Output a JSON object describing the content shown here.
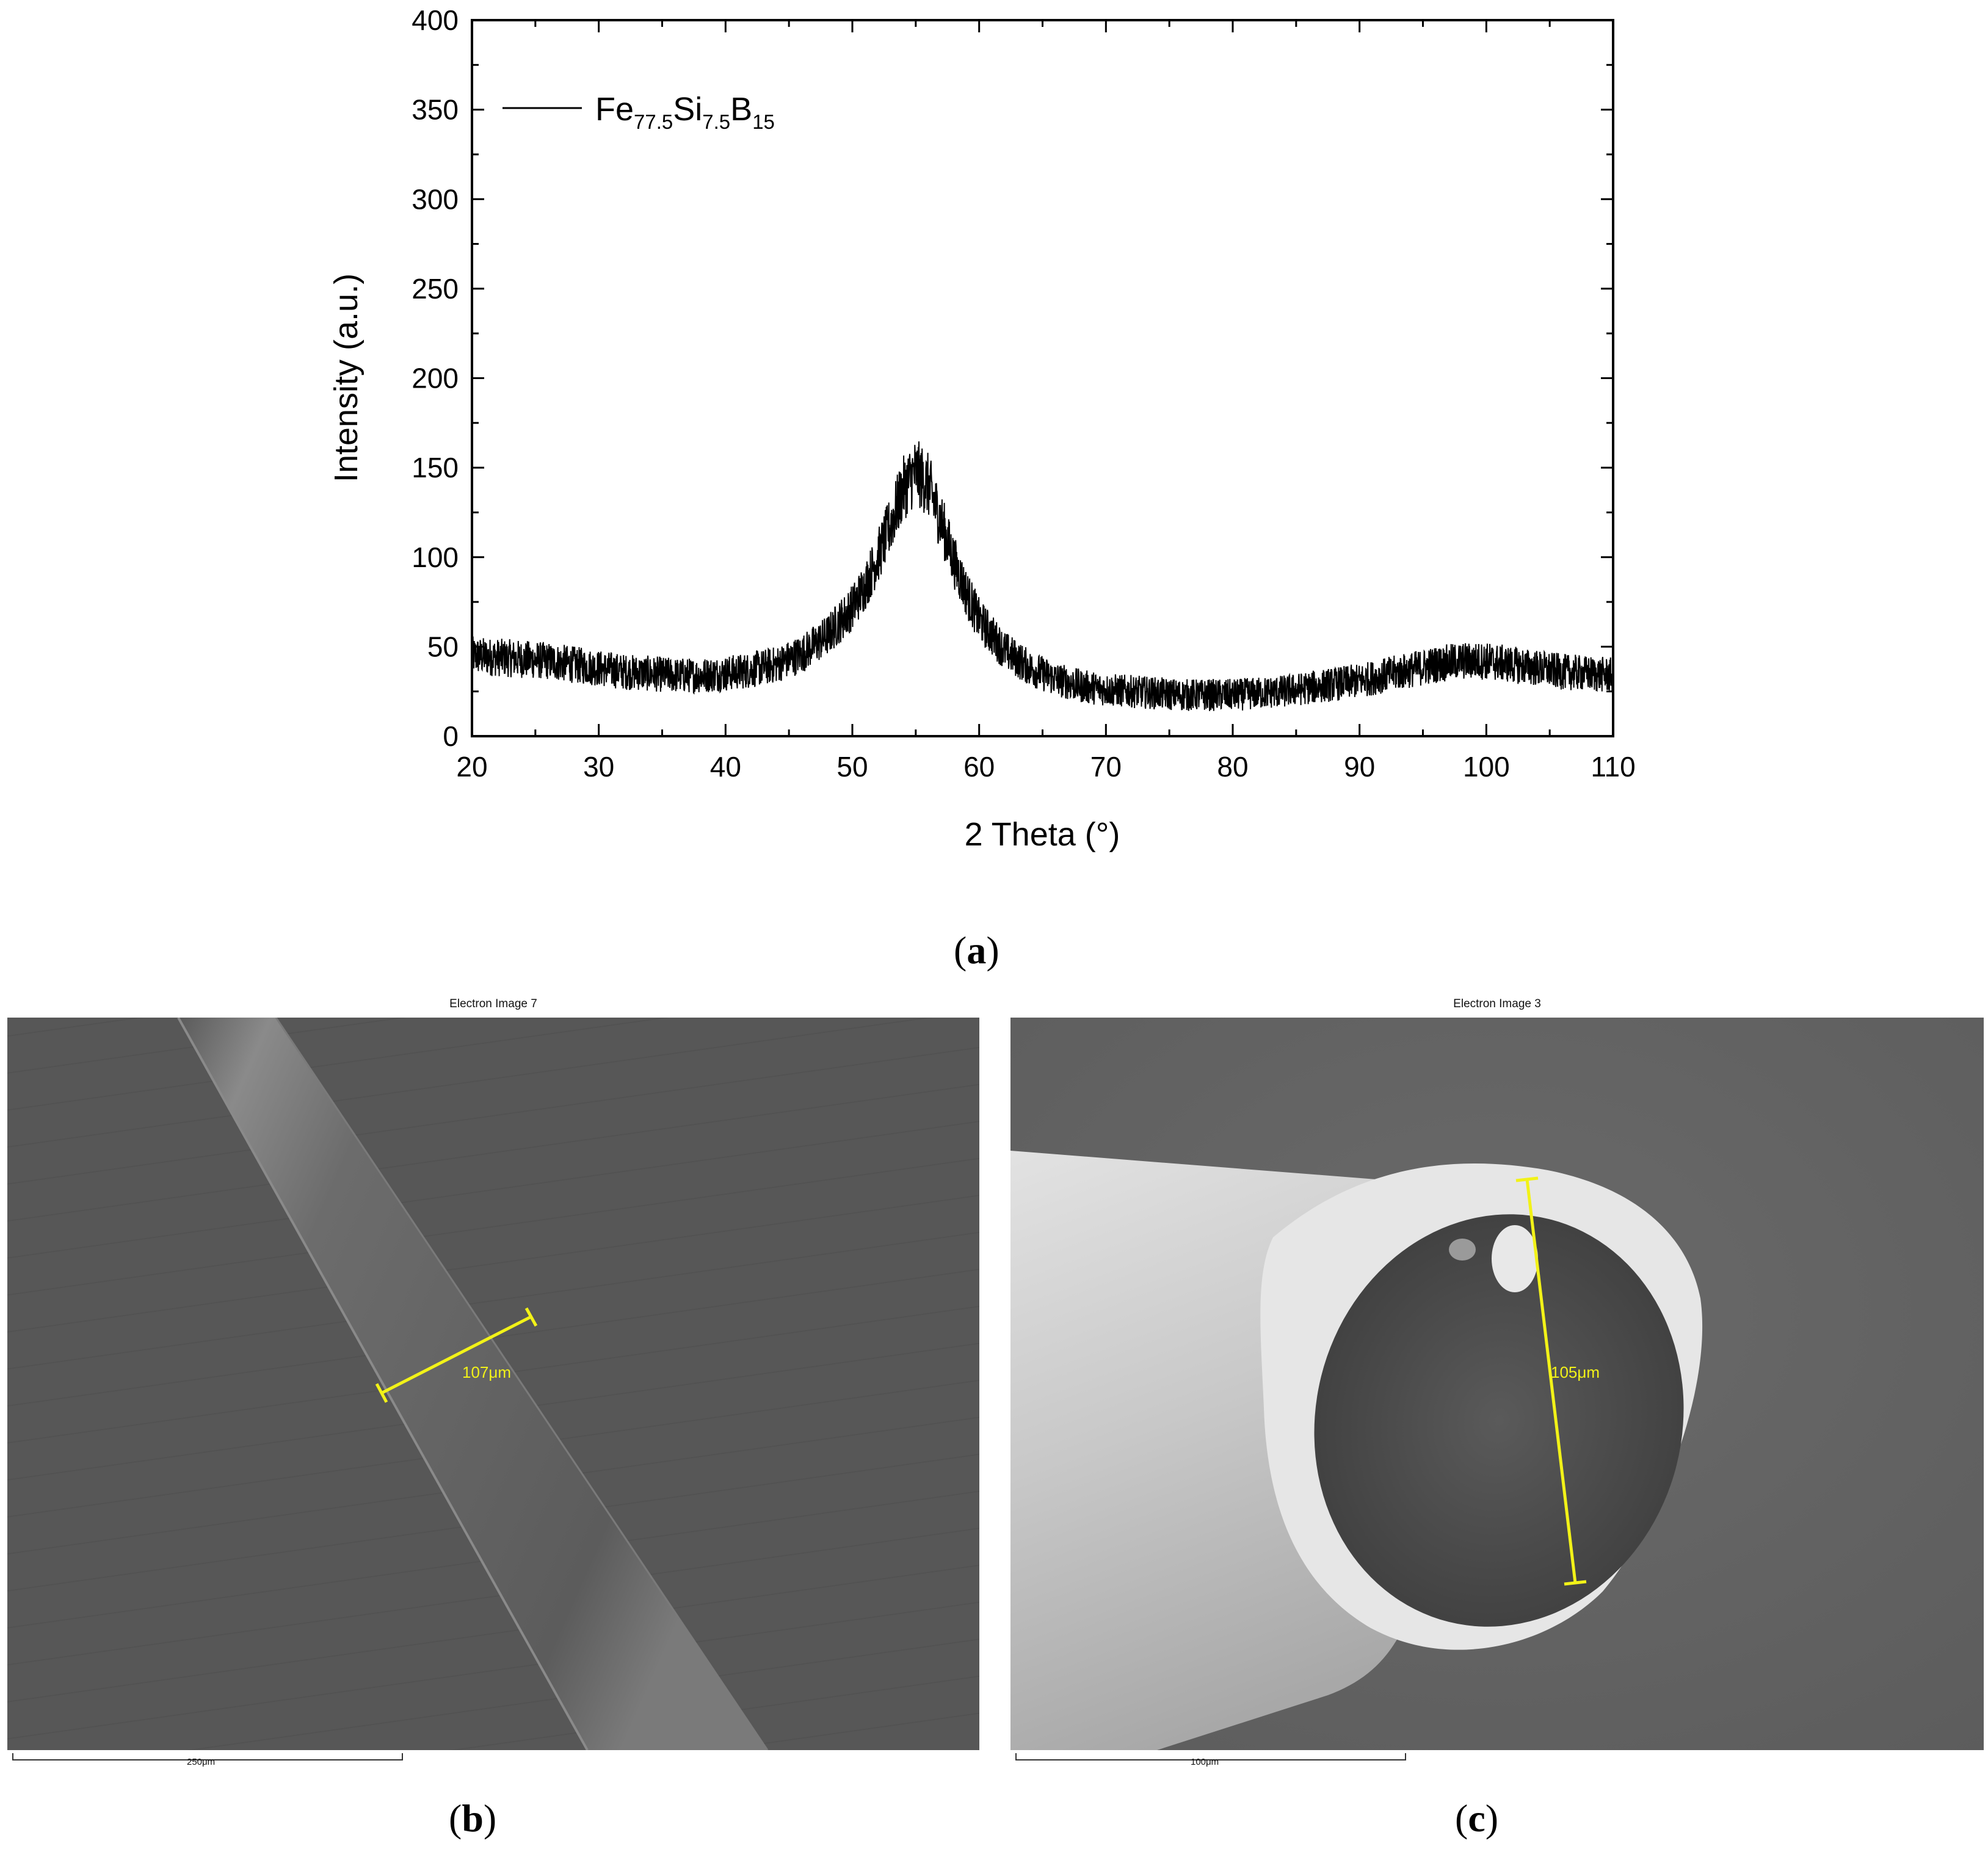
{
  "chart_data": {
    "type": "line",
    "xlabel": "2 Theta (°)",
    "ylabel": "Intensity (a.u.)",
    "xlim": [
      20,
      110
    ],
    "ylim": [
      0,
      400
    ],
    "x_ticks": [
      "20",
      "30",
      "40",
      "50",
      "60",
      "70",
      "80",
      "90",
      "100",
      "110"
    ],
    "y_ticks": [
      "0",
      "50",
      "100",
      "150",
      "200",
      "250",
      "300",
      "350",
      "400"
    ],
    "series": [
      {
        "name": "Fe77.5Si7.5B15",
        "name_parts": {
          "base1": "Fe",
          "sub1": "77.5",
          "base2": "Si",
          "sub2": "7.5",
          "base3": "B",
          "sub3": "15"
        },
        "x": [
          20,
          22,
          24,
          26,
          28,
          30,
          32,
          34,
          36,
          38,
          40,
          42,
          44,
          46,
          48,
          50,
          51,
          52,
          53,
          54,
          55,
          56,
          57,
          58,
          59,
          60,
          62,
          64,
          66,
          68,
          70,
          72,
          74,
          76,
          78,
          80,
          82,
          84,
          86,
          88,
          90,
          92,
          94,
          96,
          98,
          100,
          102,
          104,
          106,
          108,
          110
        ],
        "y": [
          45,
          44,
          43,
          42,
          40,
          38,
          36,
          35,
          34,
          34,
          35,
          37,
          40,
          46,
          56,
          72,
          84,
          100,
          118,
          138,
          148,
          140,
          120,
          98,
          80,
          65,
          48,
          38,
          32,
          28,
          26,
          25,
          24,
          23,
          23,
          23,
          24,
          25,
          27,
          29,
          31,
          34,
          37,
          40,
          42,
          42,
          40,
          38,
          36,
          35,
          34
        ],
        "noise_amplitude": 12
      }
    ],
    "legend": "top-left"
  },
  "panels": {
    "a_label": {
      "open": "(",
      "letter": "a",
      "close": ")"
    },
    "b_label": {
      "open": "(",
      "letter": "b",
      "close": ")"
    },
    "c_label": {
      "open": "(",
      "letter": "c",
      "close": ")"
    }
  },
  "sem_b": {
    "title": "Electron Image 7",
    "measurement": "107μm",
    "scale_bar": "250μm"
  },
  "sem_c": {
    "title": "Electron Image 3",
    "measurement": "105μm",
    "scale_bar": "100μm"
  },
  "colors": {
    "measure": "#f2f218",
    "sem_b_bg": "#575757",
    "sem_c_bg": "#626262"
  }
}
